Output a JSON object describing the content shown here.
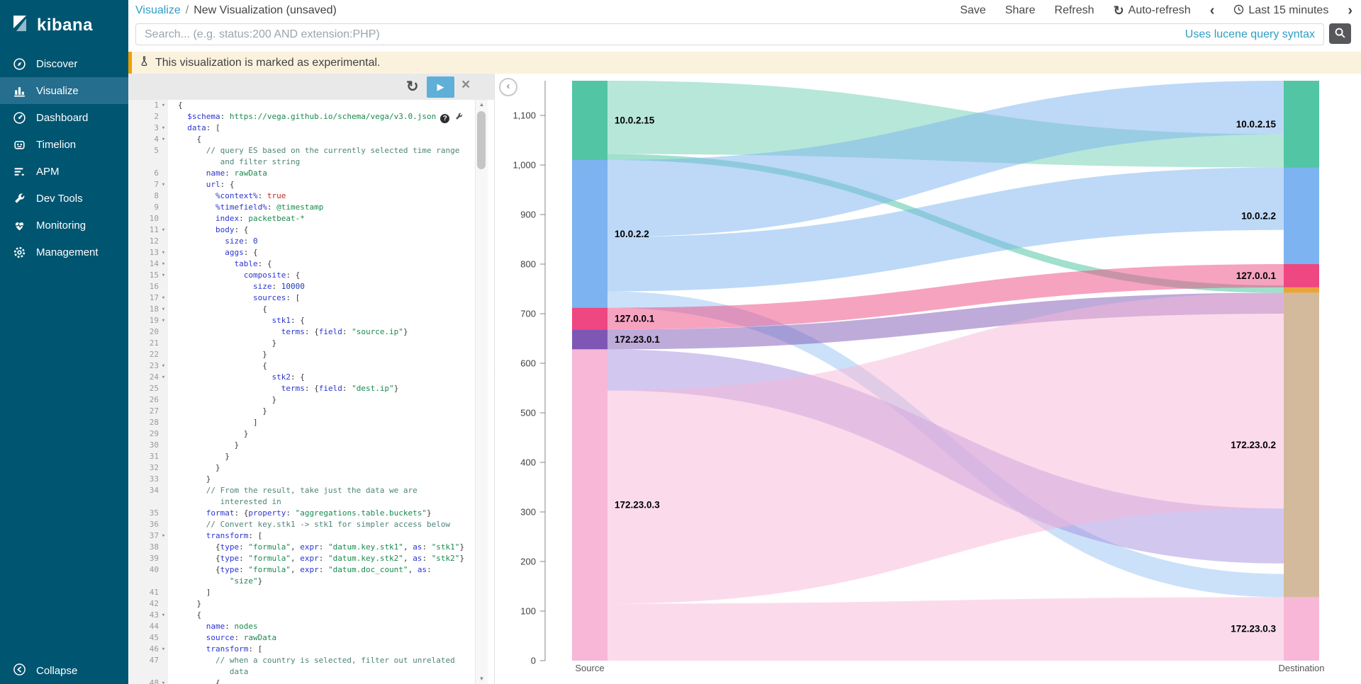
{
  "sidebar": {
    "logo_text": "kibana",
    "items": [
      {
        "label": "Discover",
        "icon": "compass",
        "active": false
      },
      {
        "label": "Visualize",
        "icon": "bar-chart",
        "active": true
      },
      {
        "label": "Dashboard",
        "icon": "gauge",
        "active": false
      },
      {
        "label": "Timelion",
        "icon": "timelion",
        "active": false
      },
      {
        "label": "APM",
        "icon": "apm",
        "active": false
      },
      {
        "label": "Dev Tools",
        "icon": "wrench",
        "active": false
      },
      {
        "label": "Monitoring",
        "icon": "heartbeat",
        "active": false
      },
      {
        "label": "Management",
        "icon": "gear",
        "active": false
      }
    ],
    "collapse_label": "Collapse"
  },
  "topnav": {
    "breadcrumb": {
      "section": "Visualize",
      "separator": "/",
      "page": "New Visualization (unsaved)"
    },
    "actions": [
      "Save",
      "Share",
      "Refresh"
    ],
    "auto_refresh_label": "Auto-refresh",
    "time_range": "Last 15 minutes"
  },
  "searchbar": {
    "placeholder": "Search... (e.g. status:200 AND extension:PHP)",
    "syntax_hint": "Uses lucene query syntax"
  },
  "banner": {
    "text": "This visualization is marked as experimental."
  },
  "icons": {
    "refresh": "↻",
    "play": "▶",
    "close": "×",
    "chevron-left": "‹",
    "chevron-right": "›",
    "scroll-up": "▲",
    "scroll-down": "▼",
    "fold-caret": "▾",
    "help": "?",
    "collapse-chart": "‹",
    "divider-dots": "⋮"
  },
  "editor": {
    "rows": [
      {
        "n": "1",
        "f": 1,
        "i": 0,
        "s": [
          [
            "p",
            "{"
          ]
        ]
      },
      {
        "n": "2",
        "f": 0,
        "i": 2,
        "s": [
          [
            "k",
            "$schema"
          ],
          [
            "p",
            ": "
          ],
          [
            "v",
            "https://vega.github.io/schema/vega/v3.0.json"
          ]
        ],
        "x": 1
      },
      {
        "n": "3",
        "f": 1,
        "i": 2,
        "s": [
          [
            "k",
            "data"
          ],
          [
            "p",
            ": ["
          ]
        ]
      },
      {
        "n": "4",
        "f": 1,
        "i": 4,
        "s": [
          [
            "p",
            "{"
          ]
        ]
      },
      {
        "n": "5",
        "f": 0,
        "i": 6,
        "s": [
          [
            "c",
            "// query ES based on the currently selected time range"
          ]
        ]
      },
      {
        "n": "",
        "f": 0,
        "i": 9,
        "s": [
          [
            "c",
            "and filter string"
          ]
        ]
      },
      {
        "n": "6",
        "f": 0,
        "i": 6,
        "s": [
          [
            "k",
            "name"
          ],
          [
            "p",
            ": "
          ],
          [
            "v",
            "rawData"
          ]
        ]
      },
      {
        "n": "7",
        "f": 1,
        "i": 6,
        "s": [
          [
            "k",
            "url"
          ],
          [
            "p",
            ": {"
          ]
        ]
      },
      {
        "n": "8",
        "f": 0,
        "i": 8,
        "s": [
          [
            "k",
            "%context%"
          ],
          [
            "p",
            ": "
          ],
          [
            "r",
            "true"
          ]
        ]
      },
      {
        "n": "9",
        "f": 0,
        "i": 8,
        "s": [
          [
            "k",
            "%timefield%"
          ],
          [
            "p",
            ": "
          ],
          [
            "v",
            "@timestamp"
          ]
        ]
      },
      {
        "n": "10",
        "f": 0,
        "i": 8,
        "s": [
          [
            "k",
            "index"
          ],
          [
            "p",
            ": "
          ],
          [
            "v",
            "packetbeat-*"
          ]
        ]
      },
      {
        "n": "11",
        "f": 1,
        "i": 8,
        "s": [
          [
            "k",
            "body"
          ],
          [
            "p",
            ": {"
          ]
        ]
      },
      {
        "n": "12",
        "f": 0,
        "i": 10,
        "s": [
          [
            "k",
            "size"
          ],
          [
            "p",
            ": "
          ],
          [
            "n",
            "0"
          ]
        ]
      },
      {
        "n": "13",
        "f": 1,
        "i": 10,
        "s": [
          [
            "k",
            "aggs"
          ],
          [
            "p",
            ": {"
          ]
        ]
      },
      {
        "n": "14",
        "f": 1,
        "i": 12,
        "s": [
          [
            "k",
            "table"
          ],
          [
            "p",
            ": {"
          ]
        ]
      },
      {
        "n": "15",
        "f": 1,
        "i": 14,
        "s": [
          [
            "k",
            "composite"
          ],
          [
            "p",
            ": {"
          ]
        ]
      },
      {
        "n": "16",
        "f": 0,
        "i": 16,
        "s": [
          [
            "k",
            "size"
          ],
          [
            "p",
            ": "
          ],
          [
            "n",
            "10000"
          ]
        ]
      },
      {
        "n": "17",
        "f": 1,
        "i": 16,
        "s": [
          [
            "k",
            "sources"
          ],
          [
            "p",
            ": ["
          ]
        ]
      },
      {
        "n": "18",
        "f": 1,
        "i": 18,
        "s": [
          [
            "p",
            "{"
          ]
        ]
      },
      {
        "n": "19",
        "f": 1,
        "i": 20,
        "s": [
          [
            "k",
            "stk1"
          ],
          [
            "p",
            ": {"
          ]
        ]
      },
      {
        "n": "20",
        "f": 0,
        "i": 22,
        "s": [
          [
            "k",
            "terms"
          ],
          [
            "p",
            ": {"
          ],
          [
            "k",
            "field"
          ],
          [
            "p",
            ": "
          ],
          [
            "s",
            "\"source.ip\""
          ],
          [
            "p",
            "}"
          ]
        ]
      },
      {
        "n": "21",
        "f": 0,
        "i": 20,
        "s": [
          [
            "p",
            "}"
          ]
        ]
      },
      {
        "n": "22",
        "f": 0,
        "i": 18,
        "s": [
          [
            "p",
            "}"
          ]
        ]
      },
      {
        "n": "23",
        "f": 1,
        "i": 18,
        "s": [
          [
            "p",
            "{"
          ]
        ]
      },
      {
        "n": "24",
        "f": 1,
        "i": 20,
        "s": [
          [
            "k",
            "stk2"
          ],
          [
            "p",
            ": {"
          ]
        ]
      },
      {
        "n": "25",
        "f": 0,
        "i": 22,
        "s": [
          [
            "k",
            "terms"
          ],
          [
            "p",
            ": {"
          ],
          [
            "k",
            "field"
          ],
          [
            "p",
            ": "
          ],
          [
            "s",
            "\"dest.ip\""
          ],
          [
            "p",
            "}"
          ]
        ]
      },
      {
        "n": "26",
        "f": 0,
        "i": 20,
        "s": [
          [
            "p",
            "}"
          ]
        ]
      },
      {
        "n": "27",
        "f": 0,
        "i": 18,
        "s": [
          [
            "p",
            "}"
          ]
        ]
      },
      {
        "n": "28",
        "f": 0,
        "i": 16,
        "s": [
          [
            "p",
            "]"
          ]
        ]
      },
      {
        "n": "29",
        "f": 0,
        "i": 14,
        "s": [
          [
            "p",
            "}"
          ]
        ]
      },
      {
        "n": "30",
        "f": 0,
        "i": 12,
        "s": [
          [
            "p",
            "}"
          ]
        ]
      },
      {
        "n": "31",
        "f": 0,
        "i": 10,
        "s": [
          [
            "p",
            "}"
          ]
        ]
      },
      {
        "n": "32",
        "f": 0,
        "i": 8,
        "s": [
          [
            "p",
            "}"
          ]
        ]
      },
      {
        "n": "33",
        "f": 0,
        "i": 6,
        "s": [
          [
            "p",
            "}"
          ]
        ]
      },
      {
        "n": "34",
        "f": 0,
        "i": 6,
        "s": [
          [
            "c",
            "// From the result, take just the data we are"
          ]
        ]
      },
      {
        "n": "",
        "f": 0,
        "i": 9,
        "s": [
          [
            "c",
            "interested in"
          ]
        ]
      },
      {
        "n": "35",
        "f": 0,
        "i": 6,
        "s": [
          [
            "k",
            "format"
          ],
          [
            "p",
            ": {"
          ],
          [
            "k",
            "property"
          ],
          [
            "p",
            ": "
          ],
          [
            "s",
            "\"aggregations.table.buckets\""
          ],
          [
            "p",
            "}"
          ]
        ]
      },
      {
        "n": "36",
        "f": 0,
        "i": 6,
        "s": [
          [
            "c",
            "// Convert key.stk1 -> stk1 for simpler access below"
          ]
        ]
      },
      {
        "n": "37",
        "f": 1,
        "i": 6,
        "s": [
          [
            "k",
            "transform"
          ],
          [
            "p",
            ": ["
          ]
        ]
      },
      {
        "n": "38",
        "f": 0,
        "i": 8,
        "s": [
          [
            "p",
            "{"
          ],
          [
            "k",
            "type"
          ],
          [
            "p",
            ": "
          ],
          [
            "s",
            "\"formula\""
          ],
          [
            "p",
            ", "
          ],
          [
            "k",
            "expr"
          ],
          [
            "p",
            ": "
          ],
          [
            "s",
            "\"datum.key.stk1\""
          ],
          [
            "p",
            ", "
          ],
          [
            "k",
            "as"
          ],
          [
            "p",
            ": "
          ],
          [
            "s",
            "\"stk1\""
          ],
          [
            "p",
            "}"
          ]
        ]
      },
      {
        "n": "39",
        "f": 0,
        "i": 8,
        "s": [
          [
            "p",
            "{"
          ],
          [
            "k",
            "type"
          ],
          [
            "p",
            ": "
          ],
          [
            "s",
            "\"formula\""
          ],
          [
            "p",
            ", "
          ],
          [
            "k",
            "expr"
          ],
          [
            "p",
            ": "
          ],
          [
            "s",
            "\"datum.key.stk2\""
          ],
          [
            "p",
            ", "
          ],
          [
            "k",
            "as"
          ],
          [
            "p",
            ": "
          ],
          [
            "s",
            "\"stk2\""
          ],
          [
            "p",
            "}"
          ]
        ]
      },
      {
        "n": "40",
        "f": 0,
        "i": 8,
        "s": [
          [
            "p",
            "{"
          ],
          [
            "k",
            "type"
          ],
          [
            "p",
            ": "
          ],
          [
            "s",
            "\"formula\""
          ],
          [
            "p",
            ", "
          ],
          [
            "k",
            "expr"
          ],
          [
            "p",
            ": "
          ],
          [
            "s",
            "\"datum.doc_count\""
          ],
          [
            "p",
            ", "
          ],
          [
            "k",
            "as"
          ],
          [
            "p",
            ":"
          ]
        ]
      },
      {
        "n": "",
        "f": 0,
        "i": 11,
        "s": [
          [
            "s",
            "\"size\""
          ],
          [
            "p",
            "}"
          ]
        ]
      },
      {
        "n": "41",
        "f": 0,
        "i": 6,
        "s": [
          [
            "p",
            "]"
          ]
        ]
      },
      {
        "n": "42",
        "f": 0,
        "i": 4,
        "s": [
          [
            "p",
            "}"
          ]
        ]
      },
      {
        "n": "43",
        "f": 1,
        "i": 4,
        "s": [
          [
            "p",
            "{"
          ]
        ]
      },
      {
        "n": "44",
        "f": 0,
        "i": 6,
        "s": [
          [
            "k",
            "name"
          ],
          [
            "p",
            ": "
          ],
          [
            "v",
            "nodes"
          ]
        ]
      },
      {
        "n": "45",
        "f": 0,
        "i": 6,
        "s": [
          [
            "k",
            "source"
          ],
          [
            "p",
            ": "
          ],
          [
            "v",
            "rawData"
          ]
        ]
      },
      {
        "n": "46",
        "f": 1,
        "i": 6,
        "s": [
          [
            "k",
            "transform"
          ],
          [
            "p",
            ": ["
          ]
        ]
      },
      {
        "n": "47",
        "f": 0,
        "i": 8,
        "s": [
          [
            "c",
            "// when a country is selected, filter out unrelated"
          ]
        ]
      },
      {
        "n": "",
        "f": 0,
        "i": 11,
        "s": [
          [
            "c",
            "data"
          ]
        ]
      },
      {
        "n": "48",
        "f": 1,
        "i": 8,
        "s": [
          [
            "p",
            "{"
          ]
        ]
      }
    ]
  },
  "chart_data": {
    "type": "sankey",
    "title": "",
    "x_categories": [
      "Source",
      "Destination"
    ],
    "y_axis": {
      "min": 0,
      "max": 1170,
      "grid": false,
      "ticks": [
        {
          "value": 0,
          "label": "0"
        },
        {
          "value": 100,
          "label": "100"
        },
        {
          "value": 200,
          "label": "200"
        },
        {
          "value": 300,
          "label": "300"
        },
        {
          "value": 400,
          "label": "400"
        },
        {
          "value": 500,
          "label": "500"
        },
        {
          "value": 600,
          "label": "600"
        },
        {
          "value": 700,
          "label": "700"
        },
        {
          "value": 800,
          "label": "800"
        },
        {
          "value": 900,
          "label": "900"
        },
        {
          "value": 1000,
          "label": "1,000"
        },
        {
          "value": 1100,
          "label": "1,100"
        }
      ]
    },
    "source_nodes": [
      {
        "label": "10.0.2.15",
        "from": 1010,
        "to": 1170,
        "color": "#52c6a4"
      },
      {
        "label": "10.0.2.2",
        "from": 712,
        "to": 1010,
        "color": "#7cb3f0"
      },
      {
        "label": "127.0.0.1",
        "from": 668,
        "to": 712,
        "color": "#ee4781"
      },
      {
        "label": "172.23.0.1",
        "from": 628,
        "to": 668,
        "color": "#7e57b5"
      },
      {
        "label": "172.23.0.3",
        "from": 0,
        "to": 628,
        "color": "#f8b7d7"
      }
    ],
    "dest_nodes": [
      {
        "label": "10.0.2.15",
        "from": 995,
        "to": 1170,
        "color": "#52c6a4"
      },
      {
        "label": "10.0.2.2",
        "from": 800,
        "to": 995,
        "color": "#7cb3f0"
      },
      {
        "label": "127.0.0.1",
        "from": 753,
        "to": 800,
        "color": "#ee4781"
      },
      {
        "label": "",
        "from": 742,
        "to": 753,
        "color": "#eaa33c"
      },
      {
        "label": "172.23.0.2",
        "from": 128,
        "to": 742,
        "color": "#d4ba9c"
      },
      {
        "label": "172.23.0.3",
        "from": 0,
        "to": 128,
        "color": "#f8b7d7"
      }
    ],
    "links": [
      {
        "from": "10.0.2.15",
        "to": "10.0.2.15",
        "s0": 1022,
        "s1": 1170,
        "d0": 995,
        "d1": 1062,
        "color": "#52c6a4",
        "opacity": 0.42
      },
      {
        "from": "10.0.2.15",
        "to": "172.23.0.2",
        "s0": 1010,
        "s1": 1022,
        "d0": 742,
        "d1": 757,
        "color": "#52c6a4",
        "opacity": 0.55
      },
      {
        "from": "10.0.2.2",
        "to": "10.0.2.15",
        "s0": 855,
        "s1": 1010,
        "d0": 1062,
        "d1": 1170,
        "color": "#7cb3f0",
        "opacity": 0.5
      },
      {
        "from": "10.0.2.2",
        "to": "10.0.2.2",
        "s0": 745,
        "s1": 855,
        "d0": 869,
        "d1": 995,
        "color": "#7cb3f0",
        "opacity": 0.5
      },
      {
        "from": "10.0.2.2",
        "to": "172.23.0.3",
        "s0": 712,
        "s1": 745,
        "d0": 128,
        "d1": 175,
        "color": "#7cb3f0",
        "opacity": 0.4
      },
      {
        "from": "127.0.0.1",
        "to": "127.0.0.1",
        "s0": 668,
        "s1": 712,
        "d0": 753,
        "d1": 800,
        "color": "#ee4781",
        "opacity": 0.5
      },
      {
        "from": "172.23.0.1",
        "to": "172.23.0.2",
        "s0": 628,
        "s1": 668,
        "d0": 700,
        "d1": 742,
        "color": "#7e57b5",
        "opacity": 0.5
      },
      {
        "from": "172.23.0.3",
        "to": "172.23.0.2",
        "s0": 545,
        "s1": 628,
        "d0": 196,
        "d1": 307,
        "color": "#a58fe0",
        "opacity": 0.5
      },
      {
        "from": "172.23.0.3",
        "to": "172.23.0.2",
        "s0": 115,
        "s1": 545,
        "d0": 307,
        "d1": 742,
        "color": "#f8b7d7",
        "opacity": 0.5
      },
      {
        "from": "172.23.0.3",
        "to": "172.23.0.3",
        "s0": 0,
        "s1": 115,
        "d0": 0,
        "d1": 128,
        "color": "#f8b7d7",
        "opacity": 0.5
      }
    ]
  }
}
